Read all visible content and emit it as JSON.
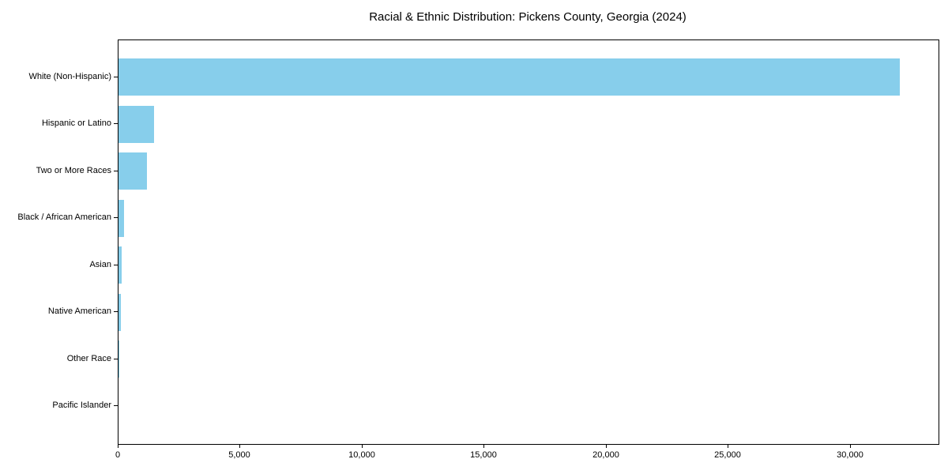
{
  "chart_data": {
    "type": "bar",
    "orientation": "horizontal",
    "title": "Racial & Ethnic Distribution: Pickens County, Georgia (2024)",
    "categories": [
      "White (Non-Hispanic)",
      "Hispanic or Latino",
      "Two or More Races",
      "Black / African American",
      "Asian",
      "Native American",
      "Other Race",
      "Pacific Islander"
    ],
    "values": [
      32000,
      1450,
      1160,
      230,
      140,
      100,
      30,
      10
    ],
    "bar_color": "#87CEEB",
    "xlabel": "",
    "ylabel": "",
    "xlim": [
      0,
      33600
    ],
    "x_ticks": [
      0,
      5000,
      10000,
      15000,
      20000,
      25000,
      30000
    ],
    "x_tick_labels": [
      "0",
      "5,000",
      "10,000",
      "15,000",
      "20,000",
      "25,000",
      "30,000"
    ],
    "grid": false,
    "legend": null,
    "frame": true,
    "background_color": "#ffffff",
    "text_color": "#000000"
  }
}
